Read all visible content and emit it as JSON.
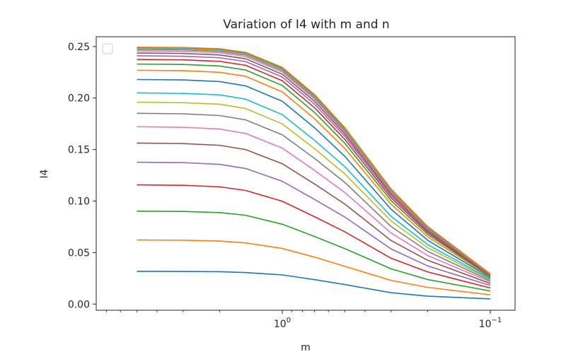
{
  "chart_data": {
    "type": "line",
    "title": "Variation of I4 with m and n",
    "xlabel": "m",
    "ylabel": "I4",
    "x_scale": "log",
    "x_inverted": true,
    "x_ticks": [
      {
        "value": 1,
        "base": "10",
        "exponent": "0"
      },
      {
        "value": 0.1,
        "base": "10",
        "exponent": "−1"
      }
    ],
    "y_ticks": [
      "0.00",
      "0.05",
      "0.10",
      "0.15",
      "0.20",
      "0.25"
    ],
    "ylim": [
      -0.006,
      0.2595
    ],
    "x": [
      5.0,
      3.0,
      2.0,
      1.5,
      1.0,
      0.7,
      0.5,
      0.3,
      0.2,
      0.1
    ],
    "grid": false,
    "legend": "top-left",
    "colors": [
      "#1f77b4",
      "#ff7f0e",
      "#2ca02c",
      "#d62728",
      "#9467bd",
      "#8c564b",
      "#e377c2",
      "#7f7f7f",
      "#bcbd22",
      "#17becf"
    ],
    "series": [
      {
        "values": [
          0.0318,
          0.0317,
          0.0314,
          0.0306,
          0.0283,
          0.0237,
          0.0189,
          0.011,
          0.0077,
          0.005
        ]
      },
      {
        "values": [
          0.0622,
          0.062,
          0.0612,
          0.0594,
          0.054,
          0.0456,
          0.0366,
          0.023,
          0.0162,
          0.009
        ]
      },
      {
        "values": [
          0.0902,
          0.0899,
          0.0888,
          0.0862,
          0.0775,
          0.0656,
          0.0538,
          0.0342,
          0.0238,
          0.0127
        ]
      },
      {
        "values": [
          0.1157,
          0.1153,
          0.1138,
          0.1103,
          0.0998,
          0.0848,
          0.0701,
          0.0445,
          0.0312,
          0.0156
        ]
      },
      {
        "values": [
          0.1377,
          0.1373,
          0.1356,
          0.1316,
          0.1192,
          0.1016,
          0.0844,
          0.0535,
          0.037,
          0.018
        ]
      },
      {
        "values": [
          0.1563,
          0.1558,
          0.1541,
          0.15,
          0.1362,
          0.1166,
          0.097,
          0.0617,
          0.0425,
          0.0199
        ]
      },
      {
        "values": [
          0.1722,
          0.1716,
          0.1699,
          0.1656,
          0.1514,
          0.1298,
          0.1082,
          0.069,
          0.0471,
          0.0214
        ]
      },
      {
        "values": [
          0.1852,
          0.1847,
          0.183,
          0.1788,
          0.1643,
          0.1414,
          0.118,
          0.0753,
          0.0512,
          0.0226
        ]
      },
      {
        "values": [
          0.196,
          0.1955,
          0.194,
          0.1898,
          0.1749,
          0.1509,
          0.1262,
          0.0807,
          0.0547,
          0.0236
        ]
      },
      {
        "values": [
          0.205,
          0.2045,
          0.2031,
          0.1989,
          0.1839,
          0.159,
          0.1333,
          0.0852,
          0.0577,
          0.0244
        ]
      },
      {
        "values": [
          0.218,
          0.2176,
          0.216,
          0.2118,
          0.1969,
          0.1712,
          0.1433,
          0.092,
          0.062,
          0.0256
        ]
      },
      {
        "values": [
          0.227,
          0.2266,
          0.225,
          0.2211,
          0.206,
          0.18,
          0.151,
          0.097,
          0.0653,
          0.0265
        ]
      },
      {
        "values": [
          0.233,
          0.2326,
          0.2311,
          0.2272,
          0.2122,
          0.186,
          0.156,
          0.1005,
          0.0676,
          0.0272
        ]
      },
      {
        "values": [
          0.2375,
          0.2371,
          0.2356,
          0.2318,
          0.2168,
          0.1906,
          0.1598,
          0.1032,
          0.0694,
          0.0277
        ]
      },
      {
        "values": [
          0.241,
          0.2406,
          0.2391,
          0.2354,
          0.2204,
          0.1941,
          0.1628,
          0.1053,
          0.0708,
          0.0281
        ]
      },
      {
        "values": [
          0.2437,
          0.2433,
          0.2418,
          0.2381,
          0.2231,
          0.1968,
          0.1651,
          0.107,
          0.0719,
          0.0284
        ]
      },
      {
        "values": [
          0.2458,
          0.2454,
          0.244,
          0.2403,
          0.2253,
          0.199,
          0.167,
          0.1084,
          0.0728,
          0.0287
        ]
      },
      {
        "values": [
          0.2472,
          0.2468,
          0.2454,
          0.2418,
          0.2268,
          0.2005,
          0.1683,
          0.1094,
          0.0735,
          0.0289
        ]
      },
      {
        "values": [
          0.2482,
          0.2479,
          0.2465,
          0.2429,
          0.228,
          0.2017,
          0.1694,
          0.1103,
          0.0741,
          0.0291
        ]
      },
      {
        "values": [
          0.2488,
          0.2485,
          0.2471,
          0.2436,
          0.2288,
          0.2025,
          0.1702,
          0.111,
          0.0746,
          0.0292
        ]
      },
      {
        "values": [
          0.2491,
          0.2489,
          0.2476,
          0.2441,
          0.2294,
          0.2031,
          0.1708,
          0.1115,
          0.075,
          0.0293
        ]
      },
      {
        "values": [
          0.2493,
          0.2491,
          0.2479,
          0.2444,
          0.2298,
          0.2035,
          0.1712,
          0.1118,
          0.0753,
          0.0294
        ]
      }
    ]
  }
}
